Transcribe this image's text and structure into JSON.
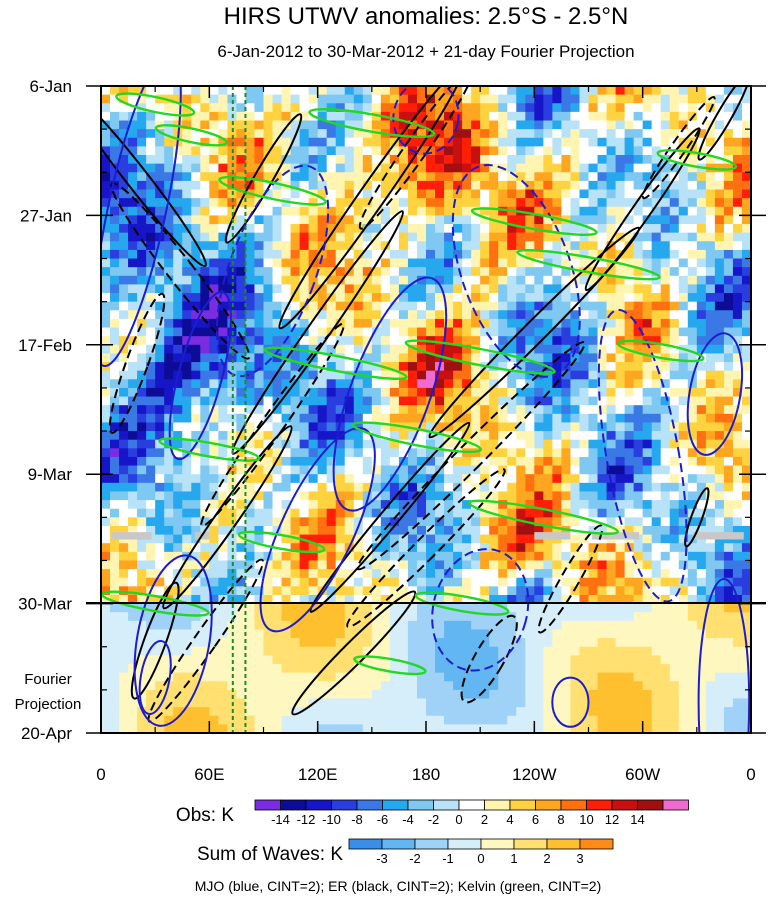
{
  "chart_data": {
    "type": "heatmap",
    "title": "HIRS UTWV anomalies: 2.5°S - 2.5°N",
    "subtitle": "6-Jan-2012 to 30-Mar-2012 + 21-day Fourier Projection",
    "x_tick_labels": [
      "0",
      "60E",
      "120E",
      "180",
      "120W",
      "60W",
      "0"
    ],
    "x_tick_values_deg_east": [
      0,
      60,
      120,
      180,
      240,
      300,
      360
    ],
    "xlim": [
      0,
      360
    ],
    "y_tick_labels": [
      "6-Jan",
      "27-Jan",
      "17-Feb",
      "9-Mar",
      "30-Mar",
      "20-Apr"
    ],
    "y_tick_days_from_start": [
      0,
      21,
      42,
      63,
      84,
      105
    ],
    "ylim_days": [
      0,
      105
    ],
    "observation_end_day": 84,
    "projection_label_line1": "Fourier",
    "projection_label_line2": "Projection",
    "reference_longitudes_deg_east": [
      73,
      80
    ],
    "obs_colorbar": {
      "label": "Obs: K",
      "tick_labels": [
        "-14",
        "-12",
        "-10",
        "-8",
        "-6",
        "-4",
        "-2",
        "0",
        "2",
        "4",
        "6",
        "8",
        "10",
        "12",
        "14"
      ],
      "colors": [
        "#7a2de0",
        "#0c0c96",
        "#1616c8",
        "#2a3ee0",
        "#3a78e6",
        "#25a8ee",
        "#7ec8f2",
        "#b8e2f8",
        "#ffffff",
        "#fff5b0",
        "#ffd23f",
        "#ffa620",
        "#ff7010",
        "#ff1f08",
        "#c81010",
        "#a01010",
        "#f06ad0"
      ]
    },
    "waves_colorbar": {
      "label": "Sum of Waves: K",
      "tick_labels": [
        "-3",
        "-2",
        "-1",
        "0",
        "1",
        "2",
        "3"
      ],
      "colors": [
        "#3a8ee8",
        "#62b6f2",
        "#9fd2f6",
        "#d6eefa",
        "#fff7c0",
        "#ffe070",
        "#ffc030",
        "#ff8a18"
      ]
    },
    "footer": "MJO (blue, CINT=2); ER (black, CINT=2); Kelvin (green, CINT=2)",
    "series": [
      {
        "name": "MJO",
        "color": "#1c1cd0",
        "contour_interval": 2
      },
      {
        "name": "ER",
        "color": "#000000",
        "contour_interval": 2
      },
      {
        "name": "Kelvin",
        "color": "#22d822",
        "contour_interval": 2
      }
    ],
    "missing_data_day": 73,
    "missing_data_lon_ranges": [
      [
        6,
        28
      ],
      [
        52,
        60
      ],
      [
        240,
        260
      ],
      [
        272,
        298
      ],
      [
        328,
        356
      ]
    ]
  }
}
